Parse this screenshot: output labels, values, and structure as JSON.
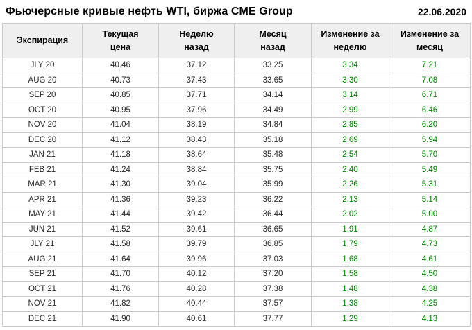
{
  "page": {
    "title": "Фьючерсные кривые нефть WTI, биржа CME Group",
    "date": "22.06.2020"
  },
  "table": {
    "header_labels": [
      "Экспирация",
      "Текущая\nцена",
      "Неделю\nназад",
      "Месяц\nназад",
      "Изменение за\nнеделю",
      "Изменение за\nмесяц"
    ]
  },
  "colors": {
    "positive_change": "#008000",
    "header_bg": "#efefef",
    "border": "#c9c9c9",
    "text": "#262626"
  },
  "chart_data": {
    "type": "table",
    "title": "Фьючерсные кривые нефть WTI, биржа CME Group",
    "date": "22.06.2020",
    "columns": [
      "Экспирация",
      "Текущая цена",
      "Неделю назад",
      "Месяц назад",
      "Изменение за неделю",
      "Изменение за месяц"
    ],
    "column_keys": [
      "cell-expiration",
      "cell-current-price",
      "cell-week-ago",
      "cell-month-ago",
      "cell-change-week",
      "cell-change-month"
    ],
    "green_columns": [
      4,
      5
    ],
    "rows": [
      [
        "JLY 20",
        "40.46",
        "37.12",
        "33.25",
        "3.34",
        "7.21"
      ],
      [
        "AUG 20",
        "40.73",
        "37.43",
        "33.65",
        "3.30",
        "7.08"
      ],
      [
        "SEP 20",
        "40.85",
        "37.71",
        "34.14",
        "3.14",
        "6.71"
      ],
      [
        "OCT 20",
        "40.95",
        "37.96",
        "34.49",
        "2.99",
        "6.46"
      ],
      [
        "NOV 20",
        "41.04",
        "38.19",
        "34.84",
        "2.85",
        "6.20"
      ],
      [
        "DEC 20",
        "41.12",
        "38.43",
        "35.18",
        "2.69",
        "5.94"
      ],
      [
        "JAN 21",
        "41.18",
        "38.64",
        "35.48",
        "2.54",
        "5.70"
      ],
      [
        "FEB 21",
        "41.24",
        "38.84",
        "35.75",
        "2.40",
        "5.49"
      ],
      [
        "MAR 21",
        "41.30",
        "39.04",
        "35.99",
        "2.26",
        "5.31"
      ],
      [
        "APR 21",
        "41.36",
        "39.23",
        "36.22",
        "2.13",
        "5.14"
      ],
      [
        "MAY 21",
        "41.44",
        "39.42",
        "36.44",
        "2.02",
        "5.00"
      ],
      [
        "JUN 21",
        "41.52",
        "39.61",
        "36.65",
        "1.91",
        "4.87"
      ],
      [
        "JLY 21",
        "41.58",
        "39.79",
        "36.85",
        "1.79",
        "4.73"
      ],
      [
        "AUG 21",
        "41.64",
        "39.96",
        "37.03",
        "1.68",
        "4.61"
      ],
      [
        "SEP 21",
        "41.70",
        "40.12",
        "37.20",
        "1.58",
        "4.50"
      ],
      [
        "OCT 21",
        "41.76",
        "40.28",
        "37.38",
        "1.48",
        "4.38"
      ],
      [
        "NOV 21",
        "41.82",
        "40.44",
        "37.57",
        "1.38",
        "4.25"
      ],
      [
        "DEC 21",
        "41.90",
        "40.61",
        "37.77",
        "1.29",
        "4.13"
      ]
    ]
  }
}
